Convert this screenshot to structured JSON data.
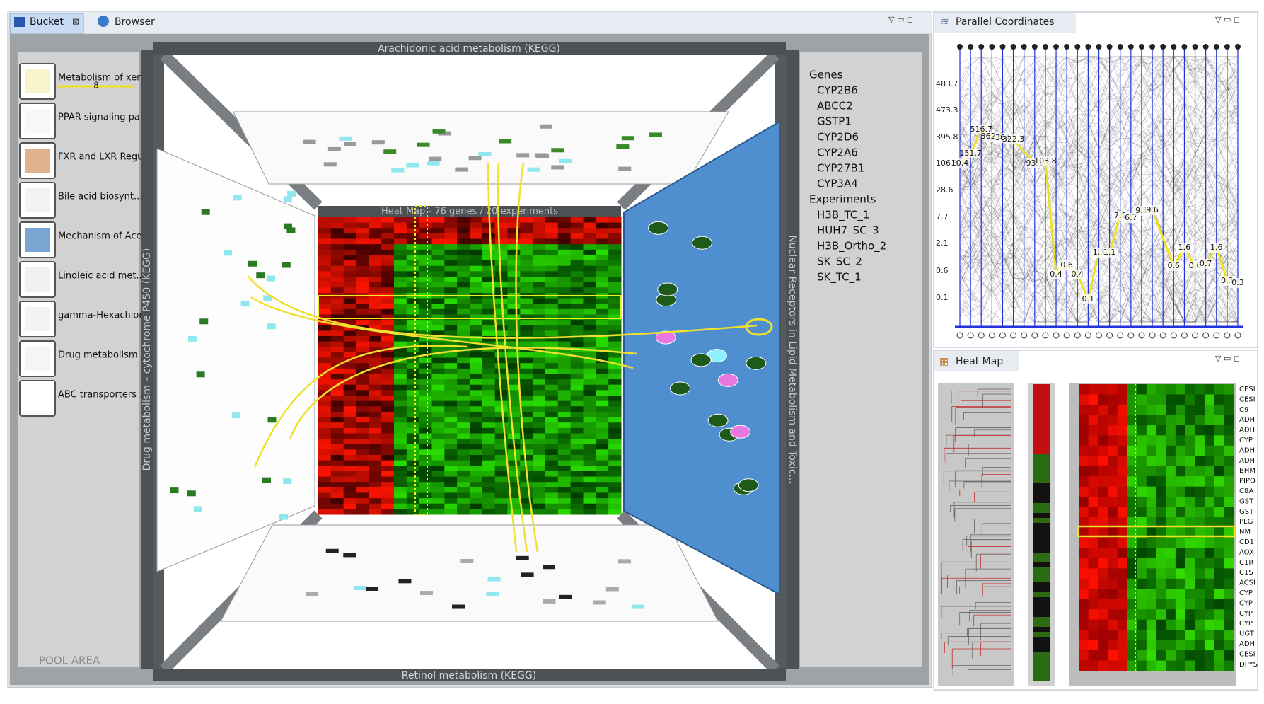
{
  "left_panel": {
    "tabs": [
      "Bucket",
      "Browser"
    ],
    "walls": {
      "top": "Arachidonic acid metabolism (KEGG)",
      "bottom": "Retinol metabolism (KEGG)",
      "left": "Drug metabolism – cytochrome P450 (KEGG)",
      "right": "Nuclear Receptors in Lipid Metabolism and Toxic...",
      "center": "Heat Map - 76 genes / 20 experiments"
    },
    "pool": [
      {
        "label": "Metabolism of xen...",
        "count": "8"
      },
      {
        "label": "PPAR signaling pa..."
      },
      {
        "label": "FXR and LXR Regul..."
      },
      {
        "label": "Bile acid biosynt..."
      },
      {
        "label": "Mechanism of Acet..."
      },
      {
        "label": "Linoleic acid met..."
      },
      {
        "label": "gamma-Hexachloroc..."
      },
      {
        "label": "Drug metabolism -..."
      },
      {
        "label": "ABC transporters ..."
      }
    ],
    "pool_area": "POOL AREA",
    "selection": {
      "genes_heading": "Genes",
      "genes": [
        "CYP2B6",
        "ABCC2",
        "GSTP1",
        "CYP2D6",
        "CYP2A6",
        "CYP27B1",
        "CYP3A4"
      ],
      "experiments_heading": "Experiments",
      "experiments": [
        "H3B_TC_1",
        "HUH7_SC_3",
        "H3B_Ortho_2",
        "SK_SC_2",
        "SK_TC_1"
      ]
    }
  },
  "parallel_coordinates": {
    "tab": "Parallel Coordinates",
    "axis_labels": [
      "483.7",
      "473.3",
      "395.8",
      "106.3",
      "28.6",
      "7.7",
      "2.1",
      "0.6",
      "0.1"
    ],
    "point_labels": [
      "10.4",
      "151.7",
      "516.7",
      "362.8",
      "364",
      "322.3",
      "93.1",
      "103.8",
      "0.4",
      "0.6",
      "0.4",
      "0.1",
      "1.3",
      "1.1",
      "7.1",
      "6.7",
      "9.1",
      "9.6",
      "0.6",
      "1.6",
      "0.6",
      "0.7",
      "1.6",
      "0.3",
      "0.3"
    ]
  },
  "heat_map": {
    "tab": "Heat Map",
    "rows": [
      "CESI",
      "CESI",
      "C9",
      "ADH",
      "ADH",
      "CYP",
      "ADH",
      "ADH",
      "BHM",
      "PIPO",
      "C8A",
      "GST",
      "GST",
      "PLG",
      "NM",
      "CD1",
      "AOX",
      "C1R",
      "C1S",
      "ACSI",
      "CYP",
      "CYP",
      "CYP",
      "CYP",
      "UGT",
      "ADH",
      "CESI",
      "DPYS"
    ]
  }
}
